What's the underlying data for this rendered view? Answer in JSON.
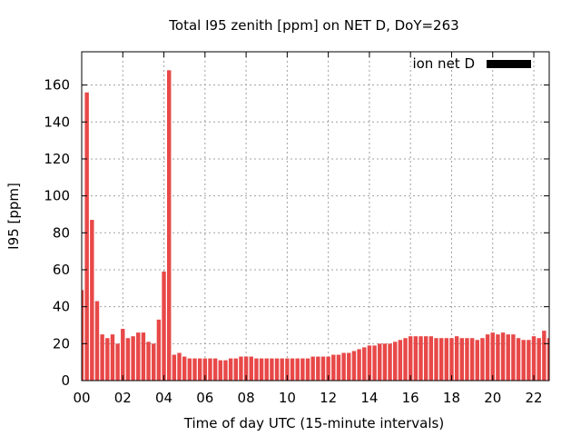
{
  "chart_data": {
    "type": "bar",
    "title": "Total I95 zenith [ppm] on NET D, DoY=263",
    "xlabel": "Time of day UTC (15-minute intervals)",
    "ylabel": "I95 [ppm]",
    "ylim": [
      0,
      178
    ],
    "xlim": [
      0,
      22.75
    ],
    "grid": true,
    "legend_position": "top-right",
    "series": [
      {
        "name": "ion net D",
        "color": "#e84848",
        "legend_color": "#000000",
        "x": [
          0,
          0.25,
          0.5,
          0.75,
          1,
          1.25,
          1.5,
          1.75,
          2,
          2.25,
          2.5,
          2.75,
          3,
          3.25,
          3.5,
          3.75,
          4,
          4.25,
          4.5,
          4.75,
          5,
          5.25,
          5.5,
          5.75,
          6,
          6.25,
          6.5,
          6.75,
          7,
          7.25,
          7.5,
          7.75,
          8,
          8.25,
          8.5,
          8.75,
          9,
          9.25,
          9.5,
          9.75,
          10,
          10.25,
          10.5,
          10.75,
          11,
          11.25,
          11.5,
          11.75,
          12,
          12.25,
          12.5,
          12.75,
          13,
          13.25,
          13.5,
          13.75,
          14,
          14.25,
          14.5,
          14.75,
          15,
          15.25,
          15.5,
          15.75,
          16,
          16.25,
          16.5,
          16.75,
          17,
          17.25,
          17.5,
          17.75,
          18,
          18.25,
          18.5,
          18.75,
          19,
          19.25,
          19.5,
          19.75,
          20,
          20.25,
          20.5,
          20.75,
          21,
          21.25,
          21.5,
          21.75,
          22,
          22.25,
          22.5,
          22.75
        ],
        "values": [
          49,
          156,
          87,
          43,
          25,
          23,
          25,
          20,
          28,
          23,
          24,
          26,
          26,
          21,
          20,
          33,
          59,
          168,
          14,
          15,
          13,
          12,
          12,
          12,
          12,
          12,
          12,
          11,
          11,
          12,
          12,
          13,
          13,
          13,
          12,
          12,
          12,
          12,
          12,
          12,
          12,
          12,
          12,
          12,
          12,
          13,
          13,
          13,
          13,
          14,
          14,
          15,
          15,
          16,
          17,
          18,
          19,
          19,
          20,
          20,
          20,
          21,
          22,
          23,
          24,
          24,
          24,
          24,
          24,
          23,
          23,
          23,
          23,
          24,
          23,
          23,
          23,
          22,
          23,
          25,
          26,
          25,
          26,
          25,
          25,
          23,
          22,
          22,
          24,
          23,
          27,
          23
        ]
      }
    ],
    "x_ticks": [
      {
        "value": 0,
        "label": "00"
      },
      {
        "value": 2,
        "label": "02"
      },
      {
        "value": 4,
        "label": "04"
      },
      {
        "value": 6,
        "label": "06"
      },
      {
        "value": 8,
        "label": "08"
      },
      {
        "value": 10,
        "label": "10"
      },
      {
        "value": 12,
        "label": "12"
      },
      {
        "value": 14,
        "label": "14"
      },
      {
        "value": 16,
        "label": "16"
      },
      {
        "value": 18,
        "label": "18"
      },
      {
        "value": 20,
        "label": "20"
      },
      {
        "value": 22,
        "label": "22"
      }
    ],
    "y_ticks": [
      {
        "value": 0,
        "label": "0"
      },
      {
        "value": 20,
        "label": "20"
      },
      {
        "value": 40,
        "label": "40"
      },
      {
        "value": 60,
        "label": "60"
      },
      {
        "value": 80,
        "label": "80"
      },
      {
        "value": 100,
        "label": "100"
      },
      {
        "value": 120,
        "label": "120"
      },
      {
        "value": 140,
        "label": "140"
      },
      {
        "value": 160,
        "label": "160"
      }
    ]
  }
}
